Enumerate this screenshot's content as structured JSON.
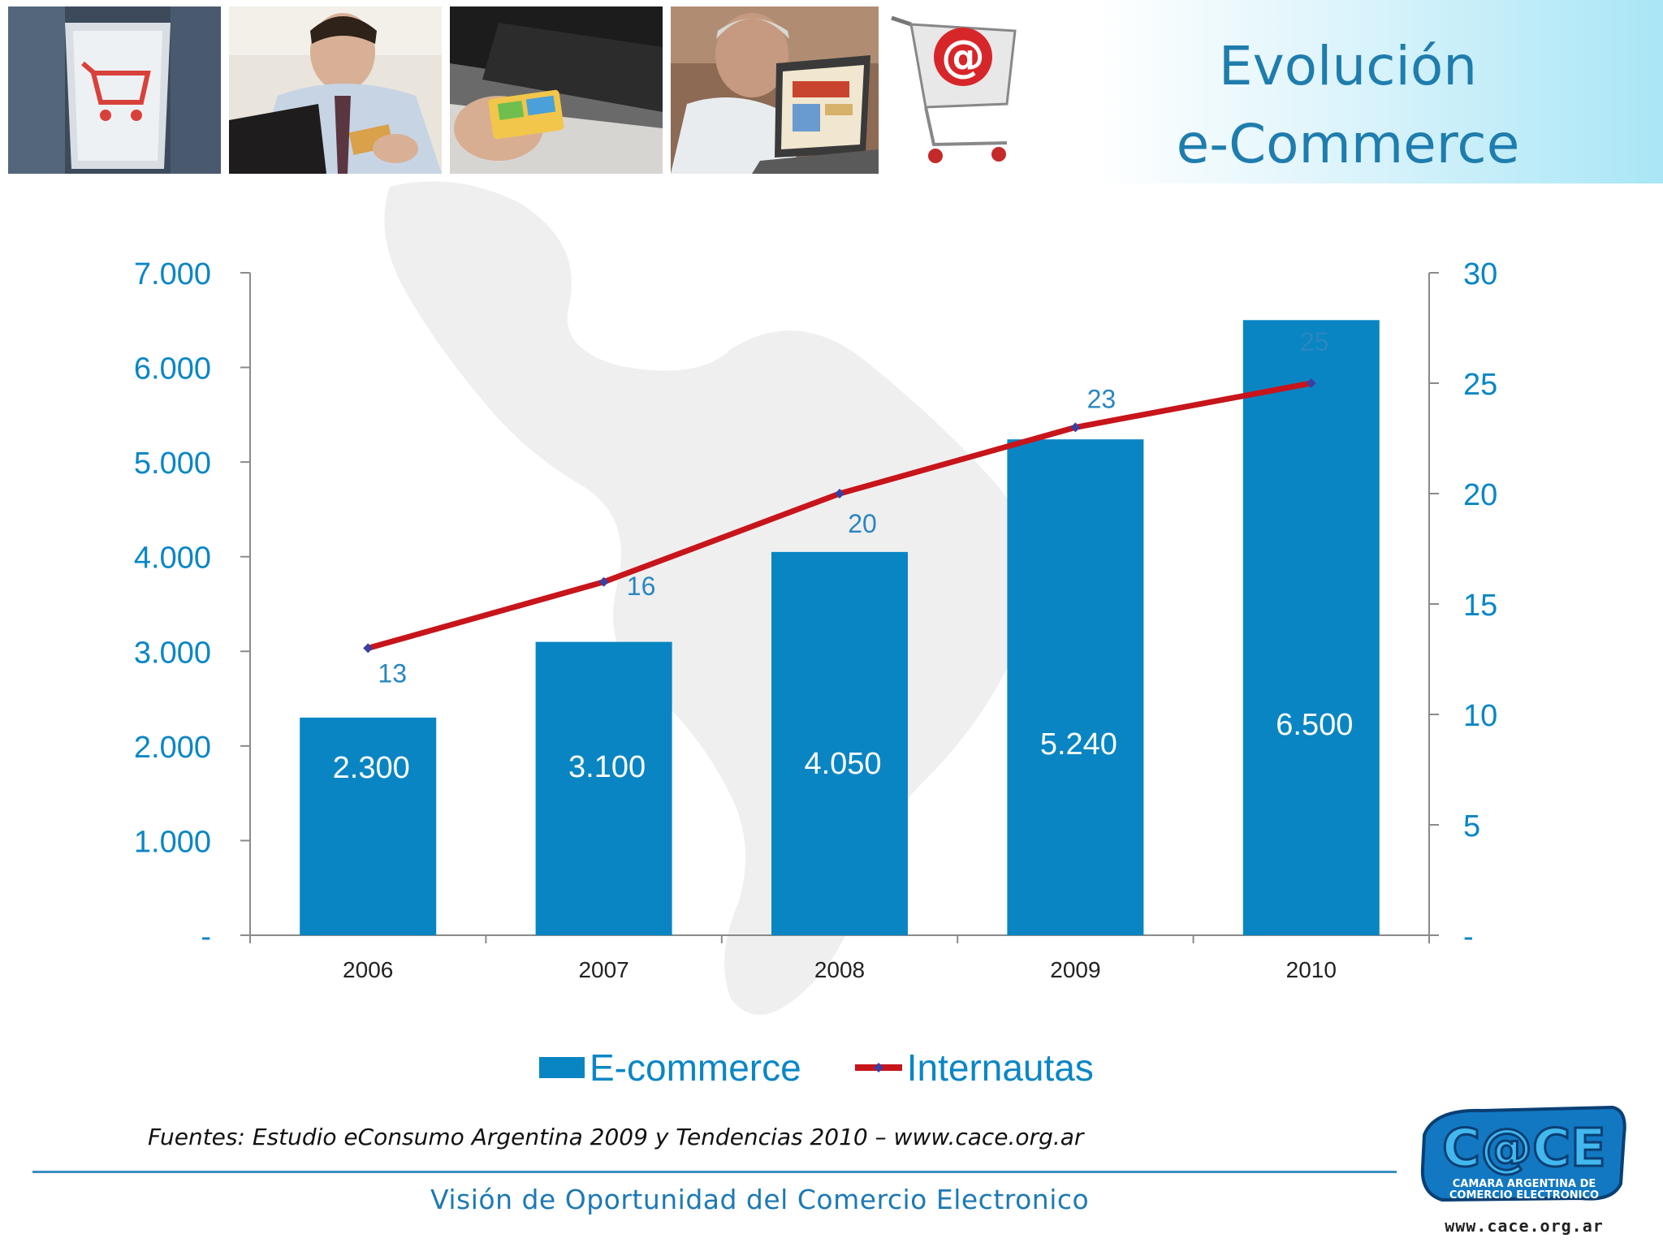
{
  "header": {
    "title_line1": "Evolución",
    "title_line2": "e-Commerce",
    "photos": [
      "cart-key-photo",
      "businessman-card-photo",
      "laptop-card-photo",
      "man-laptop-photo",
      "shopping-cart-at-photo"
    ]
  },
  "chart_data": {
    "type": "bar",
    "categories": [
      "2006",
      "2007",
      "2008",
      "2009",
      "2010"
    ],
    "series": [
      {
        "name": "E-commerce",
        "type": "bar",
        "axis": "left",
        "values": [
          2300,
          3100,
          4050,
          5240,
          6500
        ],
        "labels": [
          "2.300",
          "3.100",
          "4.050",
          "5.240",
          "6.500"
        ],
        "color": "#0985c3"
      },
      {
        "name": "Internautas",
        "type": "line",
        "axis": "right",
        "values": [
          13,
          16,
          20,
          23,
          25
        ],
        "labels": [
          "13",
          "16",
          "20",
          "23",
          "25"
        ],
        "color": "#c8141b",
        "marker_color": "#3b3f9e"
      }
    ],
    "y_left": {
      "ylim": [
        0,
        7000
      ],
      "ticks": [
        0,
        1000,
        2000,
        3000,
        4000,
        5000,
        6000,
        7000
      ],
      "tick_labels": [
        "-",
        "1.000",
        "2.000",
        "3.000",
        "4.000",
        "5.000",
        "6.000",
        "7.000"
      ]
    },
    "y_right": {
      "ylim": [
        0,
        30
      ],
      "ticks": [
        0,
        5,
        10,
        15,
        20,
        25,
        30
      ],
      "tick_labels": [
        "-",
        "5",
        "10",
        "15",
        "20",
        "25",
        "30"
      ]
    },
    "grid": false,
    "legend_position": "bottom-center",
    "colors": {
      "axis_labels": "#0a86c6",
      "bar": "#0985c3",
      "line": "#c8141b"
    }
  },
  "legend": {
    "bar_label": "E-commerce",
    "line_label": "Internautas"
  },
  "source_text": "Fuentes: Estudio eConsumo Argentina 2009 y Tendencias 2010 – www.cace.org.ar",
  "footer_text": "Visión de Oportunidad del Comercio Electronico",
  "logo": {
    "url_text": "www.cace.org.ar",
    "wordmark": "C@CE",
    "subtitle": "CAMARA ARGENTINA DE COMERCIO ELECTRONICO"
  }
}
